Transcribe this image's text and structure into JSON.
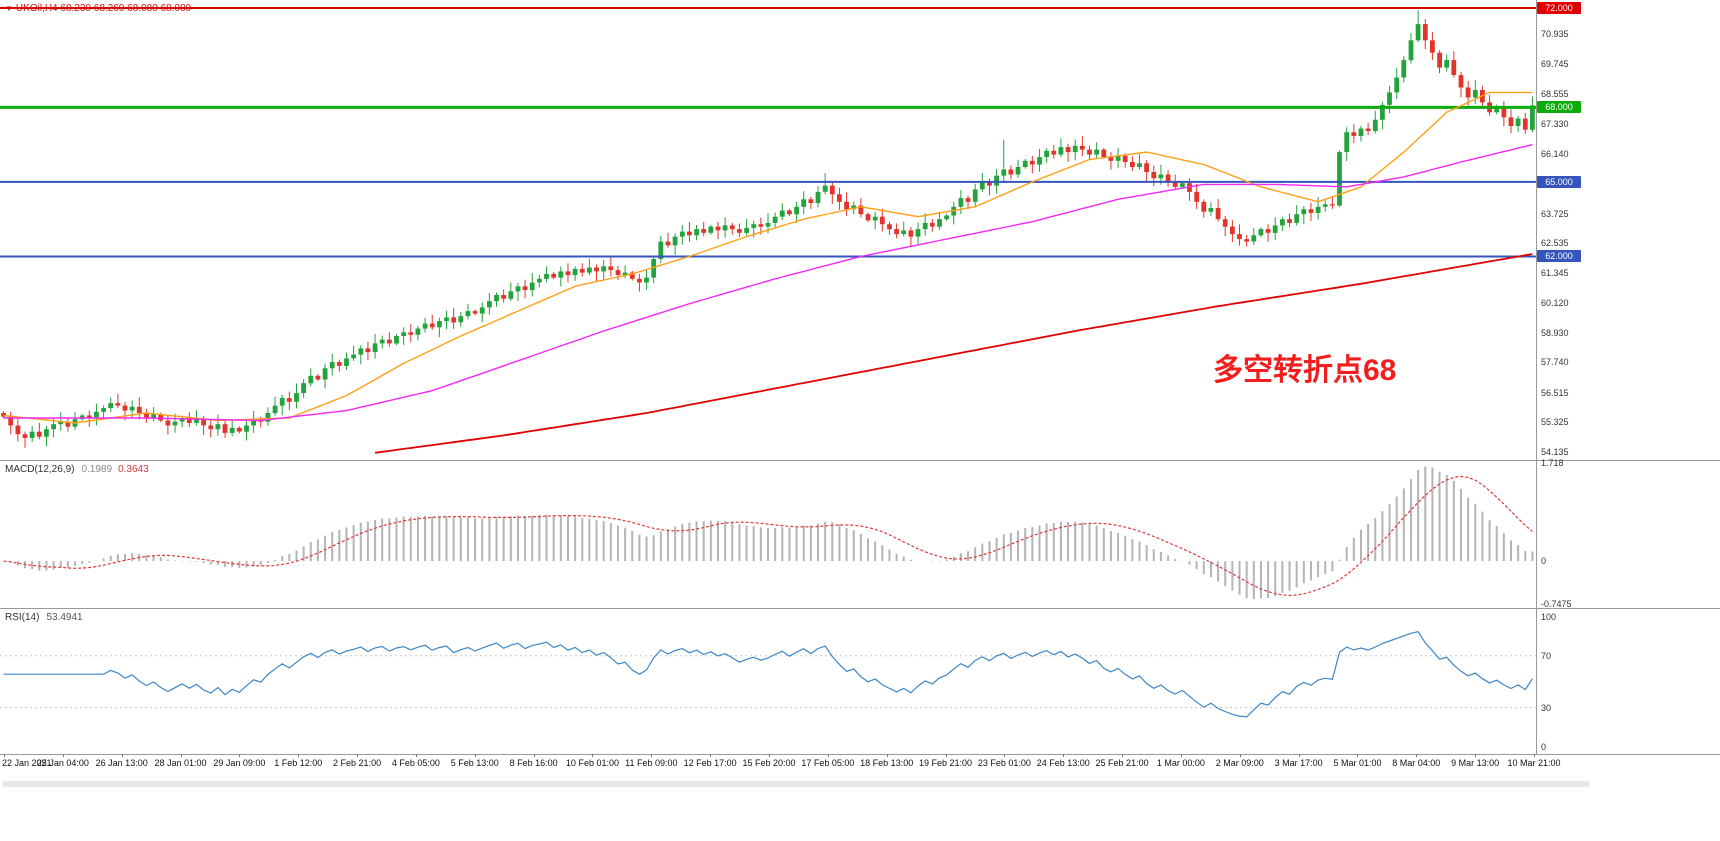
{
  "header": {
    "symbol": "UKOil,H4",
    "ohlc": "68.230 68.260 68.080 68.080"
  },
  "annotation": {
    "text": "多空转折点68"
  },
  "indicators": {
    "macd": {
      "name": "MACD(12,26,9)",
      "value_main": "0.1989",
      "value_signal": "0.3643"
    },
    "rsi": {
      "name": "RSI(14)",
      "value": "53.4941"
    }
  },
  "colors": {
    "bull": "#23a33c",
    "bear": "#e1352b",
    "macd_hist": "#b4b4b4",
    "macd_signal": "#e03838",
    "rsi_line": "#3d86c6",
    "rsi_level": "#c8c8c8",
    "axis_text": "#333333",
    "title_red": "#cc1111",
    "annotation_red": "#f21d1d"
  },
  "chart_data": {
    "type": "candlestick",
    "title": "UKOil,H4",
    "panels": [
      "price",
      "MACD",
      "RSI"
    ],
    "price_panel": {
      "ylim": [
        53.81,
        72.32
      ],
      "bars": 215,
      "closes": [
        55.55,
        55.2,
        54.85,
        54.7,
        54.95,
        54.75,
        55.05,
        55.25,
        55.35,
        55.15,
        55.45,
        55.6,
        55.5,
        55.75,
        55.9,
        56.1,
        56.0,
        55.8,
        55.95,
        55.7,
        55.5,
        55.65,
        55.4,
        55.2,
        55.35,
        55.5,
        55.3,
        55.45,
        55.2,
        55.05,
        55.25,
        54.9,
        55.1,
        54.95,
        55.2,
        55.45,
        55.35,
        55.7,
        56.0,
        56.3,
        56.15,
        56.5,
        56.9,
        57.2,
        57.05,
        57.5,
        57.75,
        57.6,
        57.9,
        58.05,
        58.3,
        58.15,
        58.5,
        58.65,
        58.5,
        58.8,
        58.95,
        58.85,
        59.1,
        59.3,
        59.15,
        59.4,
        59.55,
        59.35,
        59.6,
        59.8,
        59.7,
        59.95,
        60.2,
        60.45,
        60.3,
        60.6,
        60.8,
        60.65,
        60.95,
        61.1,
        61.3,
        61.15,
        61.4,
        61.25,
        61.5,
        61.35,
        61.55,
        61.4,
        61.6,
        61.45,
        61.25,
        61.35,
        61.1,
        60.95,
        61.15,
        61.9,
        62.6,
        62.45,
        62.8,
        63.0,
        62.85,
        63.1,
        62.95,
        63.2,
        63.05,
        63.25,
        63.1,
        62.95,
        63.15,
        63.3,
        63.2,
        63.35,
        63.6,
        63.85,
        63.7,
        64.0,
        64.3,
        64.15,
        64.6,
        64.85,
        64.5,
        64.2,
        63.9,
        64.05,
        63.7,
        63.45,
        63.6,
        63.3,
        63.1,
        62.9,
        63.05,
        62.8,
        63.1,
        63.35,
        63.2,
        63.5,
        63.65,
        64.0,
        64.35,
        64.2,
        64.7,
        65.0,
        64.85,
        65.25,
        65.5,
        65.3,
        65.6,
        65.85,
        65.7,
        66.0,
        66.25,
        66.1,
        66.4,
        66.2,
        66.45,
        66.3,
        66.1,
        66.3,
        66.0,
        65.85,
        66.05,
        65.8,
        65.6,
        65.75,
        65.4,
        65.15,
        65.3,
        65.0,
        64.8,
        64.95,
        64.6,
        64.2,
        63.8,
        63.95,
        63.5,
        63.2,
        62.9,
        62.7,
        62.6,
        62.85,
        63.1,
        62.95,
        63.25,
        63.5,
        63.35,
        63.7,
        63.9,
        63.75,
        64.0,
        64.1,
        64.05,
        66.2,
        67.0,
        66.85,
        67.15,
        67.05,
        67.5,
        68.1,
        68.6,
        69.2,
        69.9,
        70.7,
        71.35,
        70.7,
        70.2,
        69.6,
        69.9,
        69.3,
        68.8,
        68.4,
        68.7,
        68.2,
        67.8,
        68.05,
        67.6,
        67.25,
        67.55,
        67.1,
        68.08
      ],
      "wick_high_overrides": {
        "115": 65.35,
        "140": 66.7,
        "198": 71.9
      },
      "wick_low_overrides": {
        "3": 54.3,
        "31": 54.72,
        "174": 62.45
      },
      "axis_ticks": [
        {
          "label": "70.935",
          "value": 70.935
        },
        {
          "label": "69.745",
          "value": 69.745
        },
        {
          "label": "68.555",
          "value": 68.555
        },
        {
          "label": "67.330",
          "value": 67.33
        },
        {
          "label": "66.140",
          "value": 66.14
        },
        {
          "label": "63.725",
          "value": 63.725
        },
        {
          "label": "62.535",
          "value": 62.535
        },
        {
          "label": "61.345",
          "value": 61.345
        },
        {
          "label": "60.120",
          "value": 60.12
        },
        {
          "label": "58.930",
          "value": 58.93
        },
        {
          "label": "57.740",
          "value": 57.74
        },
        {
          "label": "56.515",
          "value": 56.515
        },
        {
          "label": "55.325",
          "value": 55.325
        },
        {
          "label": "54.135",
          "value": 54.135
        }
      ],
      "level_lines": [
        {
          "label": "72.000",
          "value": 72.0,
          "color": "#e00000",
          "width": 2
        },
        {
          "label": "68.000",
          "value": 68.0,
          "color": "#0cab0c",
          "width": 3
        },
        {
          "label": "65.000",
          "value": 65.0,
          "color": "#3555be",
          "width": 2
        },
        {
          "label": "62.000",
          "value": 62.0,
          "color": "#3555be",
          "width": 2
        }
      ],
      "moving_averages": [
        {
          "name": "ma-fast",
          "color": "#ffa018",
          "width": 1.4,
          "points": [
            [
              0,
              55.6
            ],
            [
              10,
              55.3
            ],
            [
              20,
              55.7
            ],
            [
              30,
              55.4
            ],
            [
              40,
              55.5
            ],
            [
              48,
              56.4
            ],
            [
              56,
              57.7
            ],
            [
              64,
              58.8
            ],
            [
              72,
              59.8
            ],
            [
              80,
              60.8
            ],
            [
              88,
              61.3
            ],
            [
              96,
              62.0
            ],
            [
              104,
              62.8
            ],
            [
              112,
              63.5
            ],
            [
              120,
              64.0
            ],
            [
              128,
              63.6
            ],
            [
              136,
              64.0
            ],
            [
              144,
              65.0
            ],
            [
              152,
              65.9
            ],
            [
              160,
              66.2
            ],
            [
              168,
              65.7
            ],
            [
              176,
              64.8
            ],
            [
              184,
              64.2
            ],
            [
              190,
              64.8
            ],
            [
              196,
              66.2
            ],
            [
              202,
              67.8
            ],
            [
              208,
              68.6
            ],
            [
              214,
              68.6
            ]
          ]
        },
        {
          "name": "ma-mid",
          "color": "#f428f4",
          "width": 1.4,
          "points": [
            [
              0,
              55.5
            ],
            [
              20,
              55.5
            ],
            [
              36,
              55.4
            ],
            [
              48,
              55.8
            ],
            [
              60,
              56.6
            ],
            [
              72,
              57.8
            ],
            [
              84,
              59.0
            ],
            [
              96,
              60.1
            ],
            [
              108,
              61.1
            ],
            [
              120,
              62.0
            ],
            [
              132,
              62.7
            ],
            [
              144,
              63.4
            ],
            [
              156,
              64.3
            ],
            [
              168,
              64.9
            ],
            [
              178,
              64.9
            ],
            [
              188,
              64.8
            ],
            [
              196,
              65.2
            ],
            [
              204,
              65.8
            ],
            [
              214,
              66.5
            ]
          ]
        },
        {
          "name": "ma-slow",
          "color": "#e00000",
          "width": 1.8,
          "points": [
            [
              52,
              54.1
            ],
            [
              70,
              54.8
            ],
            [
              90,
              55.7
            ],
            [
              110,
              56.8
            ],
            [
              130,
              57.9
            ],
            [
              150,
              59.0
            ],
            [
              170,
              60.0
            ],
            [
              190,
              60.9
            ],
            [
              204,
              61.6
            ],
            [
              214,
              62.1
            ]
          ]
        }
      ]
    },
    "macd_panel": {
      "ylim": [
        -0.82,
        1.75
      ],
      "display_max": 1.65,
      "fast": 12,
      "slow": 26,
      "signal": 9,
      "axis_ticks": [
        {
          "label": "1.718",
          "value": 1.718
        },
        {
          "label": "0",
          "value": 0
        },
        {
          "label": "-0.7475",
          "value": -0.7475
        }
      ]
    },
    "rsi_panel": {
      "ylim": [
        -5,
        106
      ],
      "period": 14,
      "levels": [
        70,
        30
      ],
      "axis_ticks": [
        {
          "label": "100",
          "value": 100
        },
        {
          "label": "70",
          "value": 70
        },
        {
          "label": "30",
          "value": 30
        },
        {
          "label": "0",
          "value": 0
        }
      ]
    },
    "time_axis": {
      "labels": [
        "22 Jan 2021",
        "25 Jan 04:00",
        "26 Jan 13:00",
        "28 Jan 01:00",
        "29 Jan 09:00",
        "1 Feb 12:00",
        "2 Feb 21:00",
        "4 Feb 05:00",
        "5 Feb 13:00",
        "8 Feb 16:00",
        "10 Feb 01:00",
        "11 Feb 09:00",
        "12 Feb 17:00",
        "15 Feb 20:00",
        "17 Feb 05:00",
        "18 Feb 13:00",
        "19 Feb 21:00",
        "23 Feb 01:00",
        "24 Feb 13:00",
        "25 Feb 21:00",
        "1 Mar 00:00",
        "2 Mar 09:00",
        "3 Mar 17:00",
        "5 Mar 01:00",
        "8 Mar 04:00",
        "9 Mar 13:00",
        "10 Mar 21:00"
      ]
    }
  }
}
